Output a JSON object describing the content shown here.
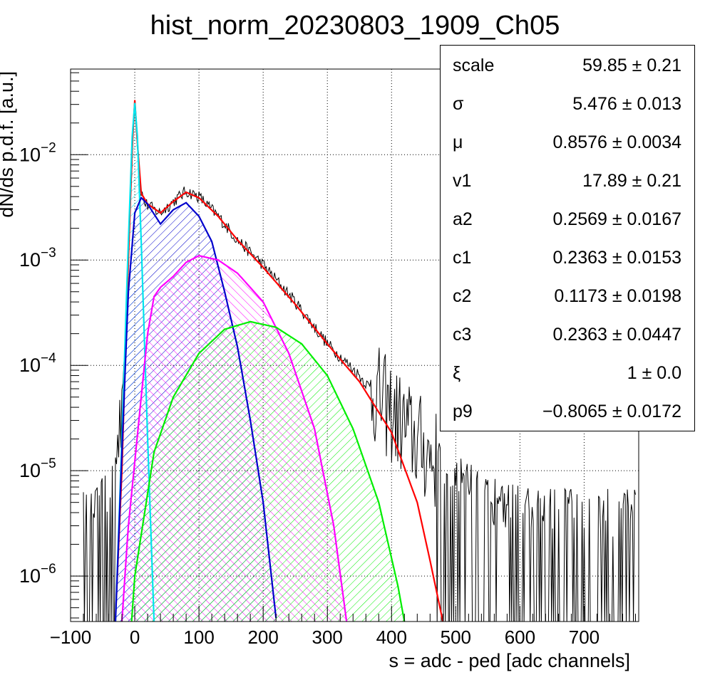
{
  "chart_data": {
    "type": "line",
    "title": "hist_norm_20230803_1909_Ch05",
    "xlabel": "s = adc - ped [adc channels]",
    "ylabel": "dN/ds p.d.f. [a.u.]",
    "xlim": [
      -100,
      785
    ],
    "ylim": [
      3.7e-07,
      0.065
    ],
    "yscale": "log",
    "grid": true,
    "x_ticks": [
      -100,
      0,
      100,
      200,
      300,
      400,
      500,
      600,
      700
    ],
    "y_ticks": [
      {
        "value": 1e-06,
        "base": "10",
        "exp": "−6"
      },
      {
        "value": 1e-05,
        "base": "10",
        "exp": "−5"
      },
      {
        "value": 0.0001,
        "base": "10",
        "exp": "−4"
      },
      {
        "value": 0.001,
        "base": "10",
        "exp": "−3"
      },
      {
        "value": 0.01,
        "base": "10",
        "exp": "−2"
      }
    ],
    "series": [
      {
        "color": "#000000",
        "kind": "histogram",
        "points": [
          [
            -80,
            3.9e-06
          ],
          [
            -60,
            3.9e-06
          ],
          [
            -40,
            6e-06
          ],
          [
            -25,
            2e-05
          ],
          [
            -15,
            0.00015
          ],
          [
            -8,
            0.002
          ],
          [
            -3,
            0.015
          ],
          [
            0,
            0.032
          ],
          [
            3,
            0.016
          ],
          [
            8,
            0.005
          ],
          [
            15,
            0.0035
          ],
          [
            30,
            0.003
          ],
          [
            40,
            0.0028
          ],
          [
            60,
            0.0036
          ],
          [
            80,
            0.0045
          ],
          [
            100,
            0.004
          ],
          [
            130,
            0.0026
          ],
          [
            160,
            0.00155
          ],
          [
            200,
            0.0009
          ],
          [
            250,
            0.0004
          ],
          [
            300,
            0.00016
          ],
          [
            350,
            8e-05
          ],
          [
            400,
            3.5e-05
          ],
          [
            450,
            1.6e-05
          ],
          [
            500,
            8e-06
          ],
          [
            550,
            5e-06
          ],
          [
            600,
            4e-06
          ],
          [
            700,
            3.9e-06
          ],
          [
            780,
            3.9e-06
          ]
        ]
      },
      {
        "color": "#ff0000",
        "kind": "fit",
        "points": [
          [
            -30,
            4e-07
          ],
          [
            -20,
            1e-05
          ],
          [
            -10,
            0.001
          ],
          [
            -4,
            0.012
          ],
          [
            0,
            0.033
          ],
          [
            4,
            0.013
          ],
          [
            10,
            0.0043
          ],
          [
            20,
            0.0034
          ],
          [
            40,
            0.0028
          ],
          [
            60,
            0.0036
          ],
          [
            80,
            0.0044
          ],
          [
            100,
            0.0039
          ],
          [
            130,
            0.0026
          ],
          [
            160,
            0.00155
          ],
          [
            200,
            0.00085
          ],
          [
            250,
            0.00038
          ],
          [
            300,
            0.00016
          ],
          [
            350,
            7e-05
          ],
          [
            400,
            2.3e-05
          ],
          [
            440,
            5e-06
          ],
          [
            460,
            1.4e-06
          ],
          [
            480,
            3.7e-07
          ]
        ]
      },
      {
        "color": "#00e5ee",
        "kind": "component",
        "points": [
          [
            -30,
            3.7e-07
          ],
          [
            -20,
            2e-05
          ],
          [
            -10,
            0.0015
          ],
          [
            -4,
            0.015
          ],
          [
            0,
            0.031
          ],
          [
            4,
            0.015
          ],
          [
            10,
            0.0015
          ],
          [
            20,
            2e-05
          ],
          [
            30,
            3.7e-07
          ]
        ]
      },
      {
        "color": "#0000cc",
        "kind": "component",
        "points": [
          [
            -30,
            3.7e-07
          ],
          [
            -20,
            1.5e-05
          ],
          [
            -10,
            0.0005
          ],
          [
            0,
            0.0028
          ],
          [
            10,
            0.0039
          ],
          [
            20,
            0.0034
          ],
          [
            40,
            0.0022
          ],
          [
            60,
            0.003
          ],
          [
            80,
            0.0035
          ],
          [
            100,
            0.0026
          ],
          [
            120,
            0.0015
          ],
          [
            140,
            0.0005
          ],
          [
            160,
            0.00015
          ],
          [
            180,
            3e-05
          ],
          [
            200,
            5e-06
          ],
          [
            220,
            4e-07
          ]
        ]
      },
      {
        "color": "#ff00ff",
        "kind": "component",
        "points": [
          [
            -20,
            3.7e-07
          ],
          [
            -10,
            3e-06
          ],
          [
            10,
            5e-05
          ],
          [
            20,
            0.0002
          ],
          [
            30,
            0.00045
          ],
          [
            40,
            0.00055
          ],
          [
            60,
            0.0007
          ],
          [
            80,
            0.00095
          ],
          [
            100,
            0.0011
          ],
          [
            130,
            0.001
          ],
          [
            160,
            0.00075
          ],
          [
            200,
            0.0004
          ],
          [
            240,
            0.00013
          ],
          [
            280,
            2.5e-05
          ],
          [
            310,
            3e-06
          ],
          [
            330,
            3.7e-07
          ]
        ]
      },
      {
        "color": "#00ee00",
        "kind": "component",
        "points": [
          [
            -5,
            3.7e-07
          ],
          [
            0,
            1e-06
          ],
          [
            30,
            1.5e-05
          ],
          [
            60,
            5e-05
          ],
          [
            100,
            0.00013
          ],
          [
            140,
            0.00022
          ],
          [
            180,
            0.00026
          ],
          [
            220,
            0.00023
          ],
          [
            260,
            0.00016
          ],
          [
            300,
            8e-05
          ],
          [
            340,
            2.5e-05
          ],
          [
            380,
            5e-06
          ],
          [
            410,
            8e-07
          ],
          [
            420,
            3.7e-07
          ]
        ]
      }
    ]
  },
  "stats": [
    {
      "name": "scale",
      "value": "59.85 ± 0.21"
    },
    {
      "name": "σ",
      "value": "5.476 ± 0.013"
    },
    {
      "name": "μ",
      "value": "0.8576 ± 0.0034"
    },
    {
      "name": "v1",
      "value": "17.89 ± 0.21"
    },
    {
      "name": "a2",
      "value": "0.2569 ± 0.0167"
    },
    {
      "name": "c1",
      "value": "0.2363 ± 0.0153"
    },
    {
      "name": "c2",
      "value": "0.1173 ± 0.0198"
    },
    {
      "name": "c3",
      "value": "0.2363 ± 0.0447"
    },
    {
      "name": "ξ",
      "value": "1 ± 0.0"
    },
    {
      "name": "p9",
      "value": "−0.8065 ± 0.0172"
    }
  ]
}
